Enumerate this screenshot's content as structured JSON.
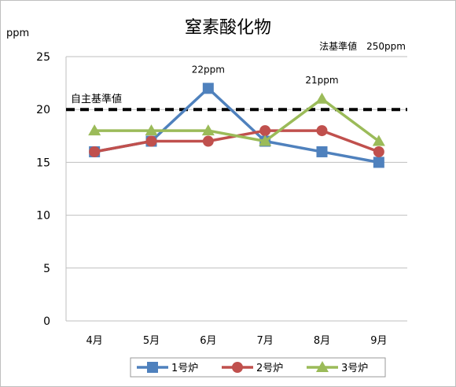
{
  "chart_data": {
    "type": "line",
    "title": "窒素酸化物",
    "ylabel": "ppm",
    "ylim": [
      0,
      25
    ],
    "yticks": [
      0,
      5,
      10,
      15,
      20,
      25
    ],
    "categories": [
      "4月",
      "5月",
      "6月",
      "7月",
      "8月",
      "9月"
    ],
    "grid": true,
    "legend_position": "bottom",
    "series": [
      {
        "name": "1号炉",
        "values": [
          16,
          17,
          22,
          17,
          16,
          15
        ],
        "color": "#4f81bd",
        "marker": "square"
      },
      {
        "name": "2号炉",
        "values": [
          16,
          17,
          17,
          18,
          18,
          16
        ],
        "color": "#c0504d",
        "marker": "circle"
      },
      {
        "name": "3号炉",
        "values": [
          18,
          18,
          18,
          17,
          21,
          17
        ],
        "color": "#9bbb59",
        "marker": "triangle"
      }
    ],
    "reference_line": {
      "label": "自主基準値",
      "value": 20,
      "color": "#000000"
    },
    "legal_standard_label": "法基準値　250ppm",
    "annotations": [
      {
        "text": "22ppm",
        "category": "6月",
        "value": 22
      },
      {
        "text": "21ppm",
        "category": "8月",
        "value": 21
      }
    ]
  }
}
